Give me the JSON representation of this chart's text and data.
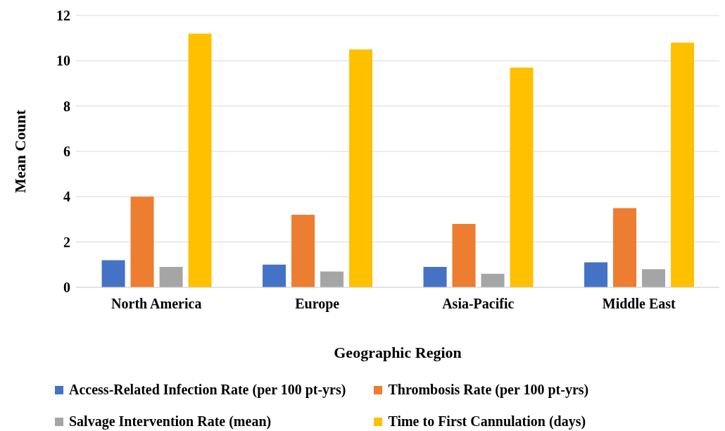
{
  "chart_data": {
    "type": "bar",
    "xlabel": "Geographic Region",
    "ylabel": "Mean Count",
    "categories": [
      "North America",
      "Europe",
      "Asia-Pacific",
      "Middle East"
    ],
    "series": [
      {
        "name": "Access-Related Infection Rate (per 100 pt-yrs)",
        "color": "#4472c4",
        "values": [
          1.2,
          1.0,
          0.9,
          1.1
        ]
      },
      {
        "name": "Thrombosis Rate (per 100 pt-yrs)",
        "color": "#ed7d31",
        "values": [
          4.0,
          3.2,
          2.8,
          3.5
        ]
      },
      {
        "name": "Salvage Intervention Rate (mean)",
        "color": "#a5a5a5",
        "values": [
          0.9,
          0.7,
          0.6,
          0.8
        ]
      },
      {
        "name": "Time to First Cannulation (days)",
        "color": "#ffc000",
        "values": [
          11.2,
          10.5,
          9.7,
          10.8
        ]
      }
    ],
    "ylim": [
      0,
      12
    ],
    "yticks": [
      0,
      2,
      4,
      6,
      8,
      10,
      12
    ],
    "grid": "y",
    "legend": "bottom"
  }
}
